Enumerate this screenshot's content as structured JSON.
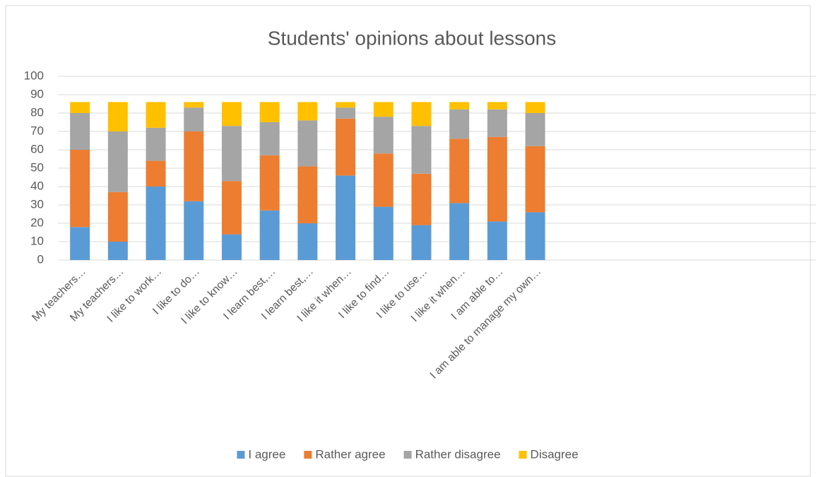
{
  "chart_data": {
    "type": "stacked_bar",
    "title": "Students' opinions about lessons",
    "categories": [
      "My teachers…",
      "My teachers…",
      "I like to work…",
      "I like to do…",
      "I like to know…",
      "I learn best,…",
      "I learn best,…",
      "I like it when…",
      "I like to find…",
      "I like to use…",
      "I like it when…",
      "I am able to…",
      "I am able to manage my own…"
    ],
    "series": [
      {
        "name": "I agree",
        "color": "#5b9bd5",
        "values": [
          18,
          10,
          40,
          32,
          14,
          27,
          20,
          46,
          29,
          19,
          31,
          21,
          26
        ]
      },
      {
        "name": "Rather agree",
        "color": "#ed7d31",
        "values": [
          42,
          27,
          14,
          38,
          29,
          30,
          31,
          31,
          29,
          28,
          35,
          46,
          36
        ]
      },
      {
        "name": "Rather disagree",
        "color": "#a5a5a5",
        "values": [
          20,
          33,
          18,
          13,
          30,
          18,
          25,
          6,
          20,
          26,
          16,
          15,
          18
        ]
      },
      {
        "name": "Disagree",
        "color": "#ffc000",
        "values": [
          6,
          16,
          14,
          3,
          13,
          11,
          10,
          3,
          8,
          13,
          4,
          4,
          6
        ]
      }
    ],
    "ylim": [
      0,
      100
    ],
    "yticks": [
      0,
      10,
      20,
      30,
      40,
      50,
      60,
      70,
      80,
      90,
      100
    ],
    "grid": true,
    "legend": "bottom"
  }
}
